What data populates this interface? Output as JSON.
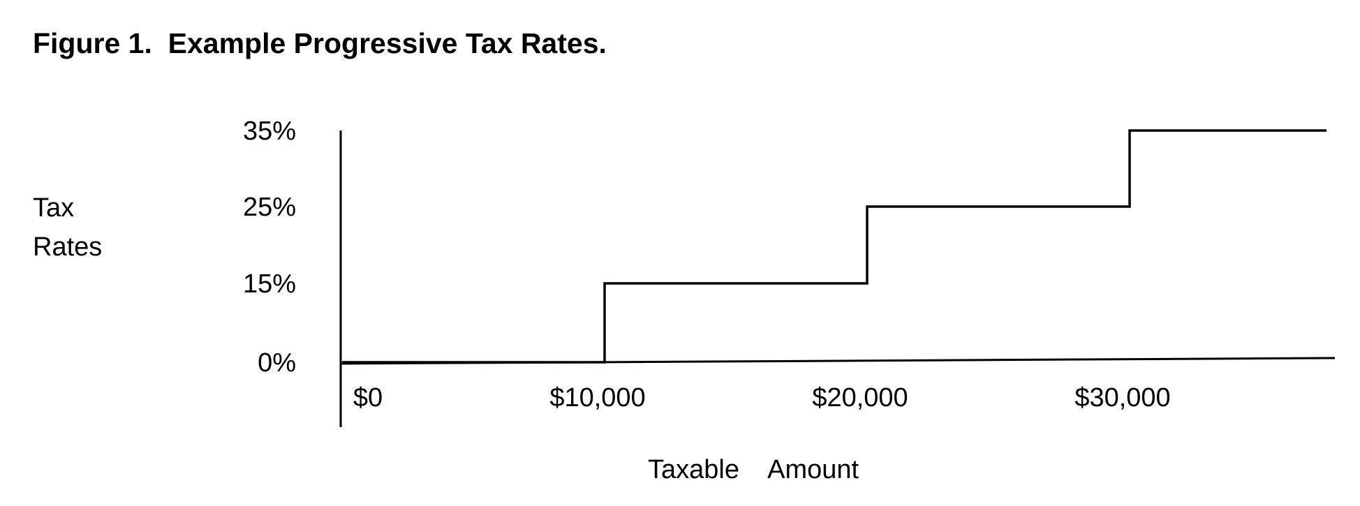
{
  "title": "Figure 1.  Example Progressive Tax Rates.",
  "chart_data": {
    "type": "line",
    "title": "Figure 1.  Example Progressive Tax Rates.",
    "ylabel": [
      "Tax",
      "Rates"
    ],
    "xlabel": "Taxable    Amount",
    "x_ticks": [
      {
        "value": 0,
        "label": "$0"
      },
      {
        "value": 10000,
        "label": "$10,000"
      },
      {
        "value": 20000,
        "label": "$20,000"
      },
      {
        "value": 30000,
        "label": "$30,000"
      }
    ],
    "y_ticks": [
      {
        "value": 0,
        "label": "0%"
      },
      {
        "value": 15,
        "label": "15%"
      },
      {
        "value": 25,
        "label": "25%"
      },
      {
        "value": 35,
        "label": "35%"
      }
    ],
    "series": [
      {
        "style": "step",
        "color": "#000000",
        "points": [
          {
            "x": 0,
            "y": 0
          },
          {
            "x": 10000,
            "y": 0
          },
          {
            "x": 10000,
            "y": 15
          },
          {
            "x": 20000,
            "y": 15
          },
          {
            "x": 20000,
            "y": 25
          },
          {
            "x": 30000,
            "y": 25
          },
          {
            "x": 30000,
            "y": 35
          },
          {
            "x": 37500,
            "y": 35
          }
        ]
      }
    ],
    "xlim": [
      0,
      38000
    ],
    "ylim": [
      0,
      35
    ],
    "grid": false,
    "legend": "none"
  }
}
